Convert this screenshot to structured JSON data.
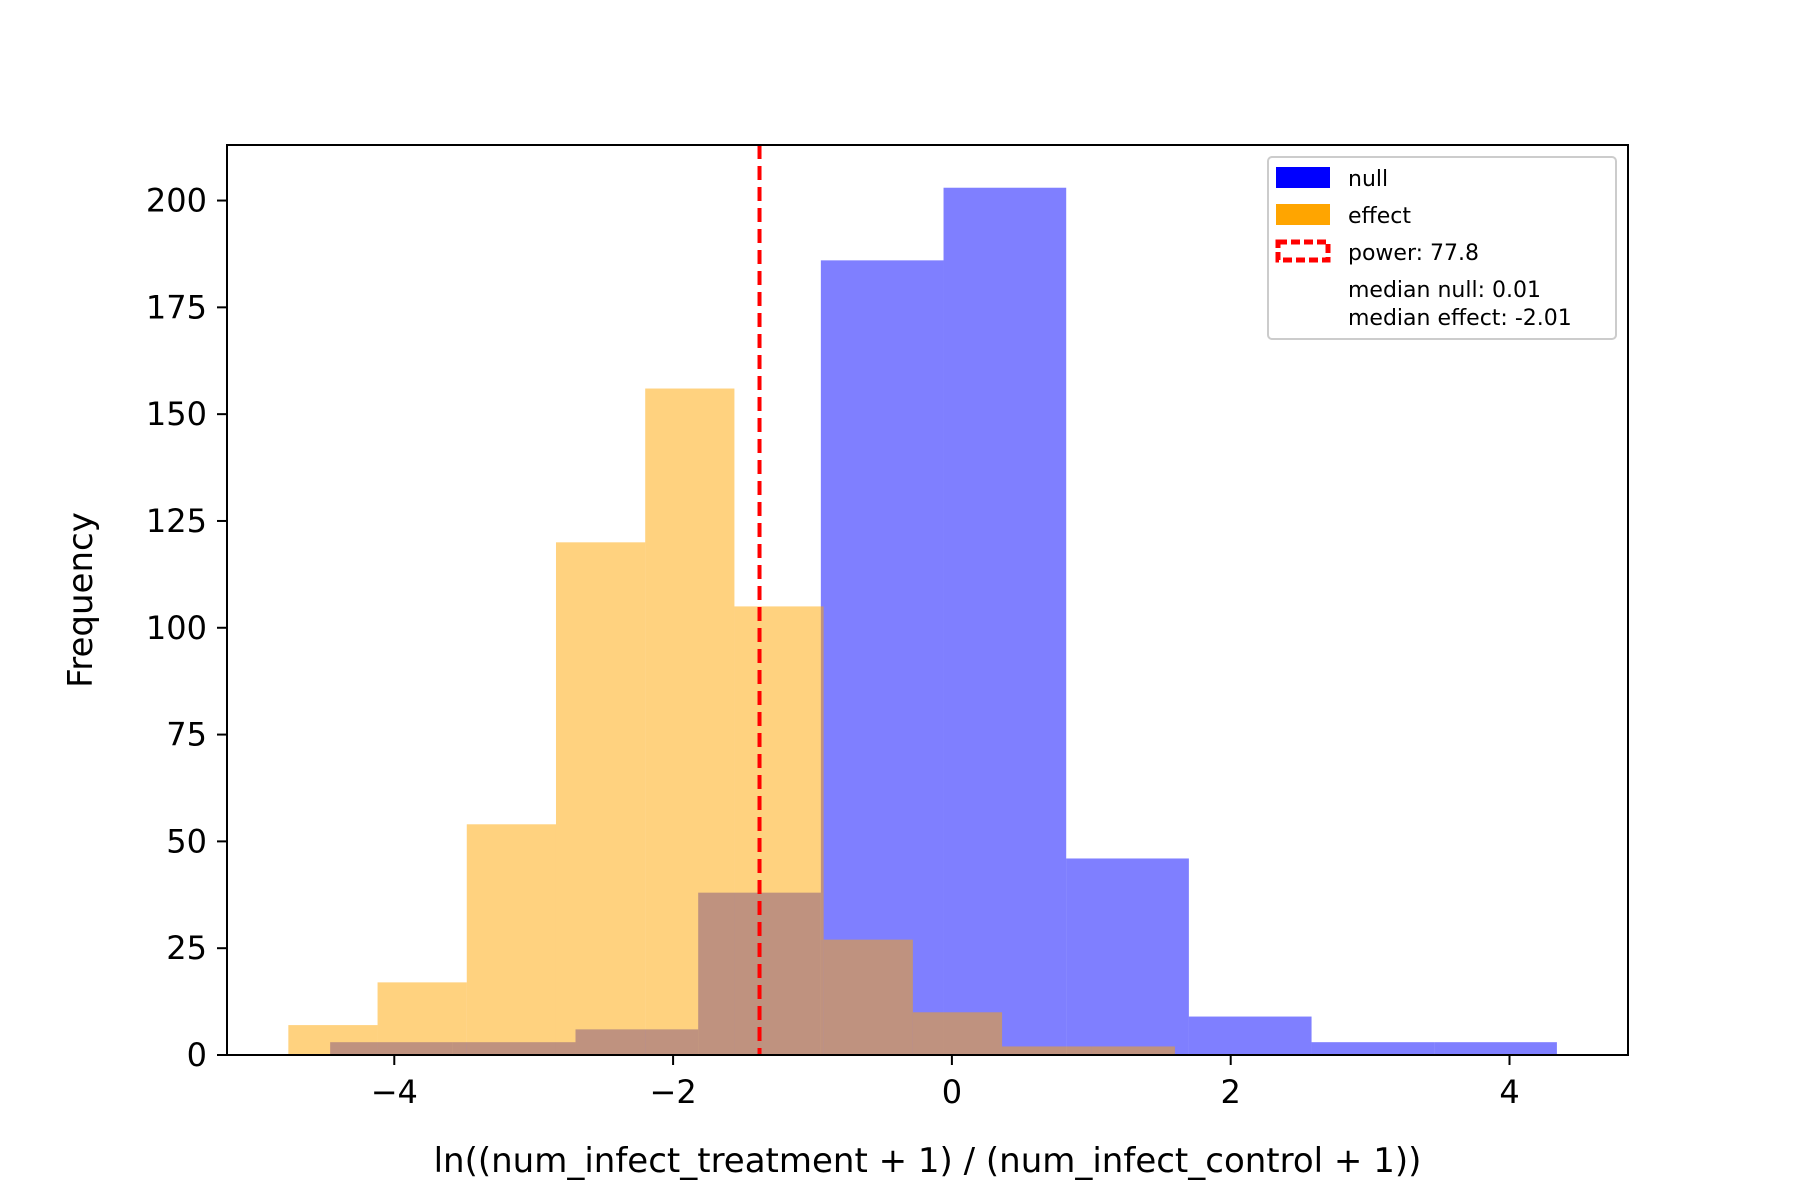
{
  "chart_data": {
    "type": "histogram",
    "xlabel": "ln((num_infect_treatment + 1) / (num_infect_control + 1))",
    "ylabel": "Frequency",
    "xlim": [
      -5.2,
      4.85
    ],
    "ylim": [
      0,
      213
    ],
    "xticks": [
      -4,
      -2,
      0,
      2,
      4
    ],
    "xtick_labels": [
      "−4",
      "−2",
      "0",
      "2",
      "4"
    ],
    "yticks": [
      0,
      25,
      50,
      75,
      100,
      125,
      150,
      175,
      200
    ],
    "ytick_labels": [
      "0",
      "25",
      "50",
      "75",
      "100",
      "125",
      "150",
      "175",
      "200"
    ],
    "grid": false,
    "legend_position": "top-right",
    "series": [
      {
        "name": "null",
        "color": "#0000ff",
        "alpha": 0.5,
        "bin_edges": [
          -4.46,
          -3.58,
          -2.7,
          -1.82,
          -0.94,
          -0.06,
          0.82,
          1.7,
          2.58,
          3.46,
          4.34
        ],
        "values": [
          3,
          3,
          6,
          38,
          186,
          203,
          46,
          9,
          3,
          3
        ]
      },
      {
        "name": "effect",
        "color": "#ffa500",
        "alpha": 0.5,
        "bin_edges": [
          -4.76,
          -4.12,
          -3.48,
          -2.84,
          -2.2,
          -1.56,
          -0.92,
          -0.28,
          0.36,
          1.0,
          1.6
        ],
        "values": [
          7,
          17,
          54,
          120,
          156,
          105,
          27,
          10,
          2,
          2
        ]
      }
    ],
    "threshold_line": {
      "x": -1.38,
      "color": "#ff0000",
      "style": "dashed",
      "legend_label": "power: 77.8"
    },
    "legend": {
      "entries": [
        "null",
        "effect",
        "power: 77.8"
      ],
      "notes": [
        "median null: 0.01",
        "median effect: -2.01"
      ]
    }
  }
}
